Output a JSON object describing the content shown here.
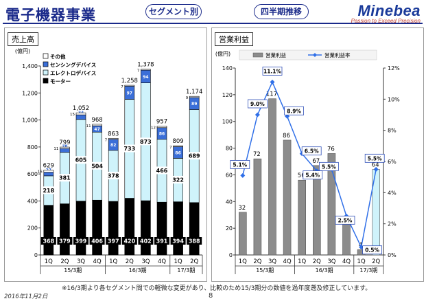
{
  "header": {
    "title": "電子機器事業",
    "segment_pill": "セグメント別",
    "period_pill": "四半期推移",
    "logo": "Minebea",
    "logo_tagline": "Passion to Exceed Precision"
  },
  "left_panel": {
    "label": "売上高"
  },
  "right_panel": {
    "label": "営業利益"
  },
  "footer": {
    "note": "※16/3期より各セグメント間での軽微な変更があり、比較のため15/3期分の数値を過年度遡及修正しています。",
    "date": "2016年11月2日",
    "page": "8"
  },
  "colors": {
    "motor": "#000000",
    "electro": "#cff3fb",
    "sensing": "#3b6fd8",
    "other": "#ffffff",
    "op_bar": "#8c8c8c",
    "op_bar_latest": "#cff3fb",
    "op_line": "#2f6fe8"
  },
  "chart_data": [
    {
      "type": "bar",
      "title": "売上高",
      "unit_label": "(億円)",
      "categories": [
        "1Q",
        "2Q",
        "3Q",
        "4Q",
        "1Q",
        "2Q",
        "3Q",
        "4Q",
        "1Q",
        "2Q"
      ],
      "period_groups": [
        {
          "label": "15/3期",
          "count": 4
        },
        {
          "label": "16/3期",
          "count": 4
        },
        {
          "label": "17/3期",
          "count": 2
        }
      ],
      "stacked": true,
      "ylim": [
        0,
        1400
      ],
      "yticks": [
        "0",
        "200",
        "400",
        "600",
        "800",
        "1,000",
        "1,200",
        "1,400"
      ],
      "series": [
        {
          "name": "モーター",
          "values": [
            368,
            379,
            399,
            406,
            397,
            420,
            402,
            391,
            394,
            388
          ],
          "labels": [
            "368",
            "379",
            "399",
            "406",
            "397",
            "420",
            "402",
            "391",
            "394",
            "388"
          ]
        },
        {
          "name": "エレクトロデバイス",
          "values": [
            218,
            381,
            605,
            504,
            378,
            733,
            873,
            466,
            322,
            689
          ],
          "labels": [
            "218",
            "381",
            "605",
            "504",
            "378",
            "733",
            "873",
            "466",
            "322",
            "689"
          ]
        },
        {
          "name": "センシングデバイス",
          "values": [
            27,
            28,
            34,
            47,
            82,
            97,
            94,
            86,
            86,
            89
          ],
          "labels": [
            "27",
            "28",
            "34",
            "47",
            "82",
            "97",
            "94",
            "86",
            "86",
            "89"
          ]
        },
        {
          "name": "その他",
          "values": [
            16,
            11,
            15,
            11,
            7,
            7,
            7,
            12,
            7,
            9
          ],
          "labels": [
            "16",
            "11",
            "15",
            "11",
            "7",
            "7",
            "7",
            "12",
            "7",
            "9"
          ]
        }
      ],
      "totals": [
        "629",
        "799",
        "1,052",
        "968",
        "863",
        "1,258",
        "1,378",
        "957",
        "809",
        "1,174"
      ],
      "legend": [
        "その他",
        "センシングデバイス",
        "エレクトロデバイス",
        "モーター"
      ]
    },
    {
      "type": "bar",
      "title": "営業利益",
      "unit_label": "(億円)",
      "categories": [
        "1Q",
        "2Q",
        "3Q",
        "4Q",
        "1Q",
        "2Q",
        "3Q",
        "4Q",
        "1Q",
        "2Q"
      ],
      "period_groups": [
        {
          "label": "15/3期",
          "count": 4
        },
        {
          "label": "16/3期",
          "count": 4
        },
        {
          "label": "17/3期",
          "count": 2
        }
      ],
      "ylim": [
        0,
        140
      ],
      "yticks": [
        "0",
        "20",
        "40",
        "60",
        "80",
        "100",
        "120",
        "140"
      ],
      "y2lim": [
        0,
        12
      ],
      "y2ticks": [
        "0%",
        "2%",
        "4%",
        "6%",
        "8%",
        "10%",
        "12%"
      ],
      "series": [
        {
          "name": "営業利益",
          "values": [
            32,
            72,
            117,
            86,
            56,
            67,
            76,
            24,
            4,
            64
          ],
          "labels": [
            "32",
            "72",
            "117",
            "86",
            "56",
            "67",
            "76",
            "24",
            "4",
            "64"
          ]
        },
        {
          "name": "営業利益率",
          "values": [
            5.1,
            9.0,
            11.1,
            8.9,
            6.5,
            5.4,
            5.5,
            2.5,
            0.5,
            5.5
          ],
          "labels": [
            "5.1%",
            "9.0%",
            "11.1%",
            "8.9%",
            "6.5%",
            "5.4%",
            "5.5%",
            "2.5%",
            "0.5%",
            "5.5%"
          ]
        }
      ],
      "legend": [
        "営業利益",
        "営業利益率"
      ]
    }
  ]
}
